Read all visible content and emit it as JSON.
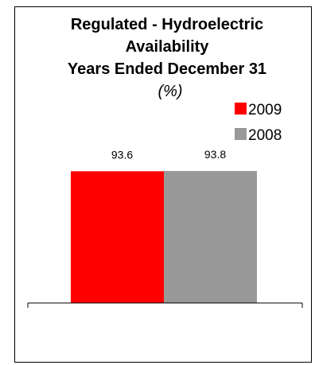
{
  "chart_data": {
    "type": "bar",
    "title_lines": [
      "Regulated - Hydroelectric",
      "Availability",
      "Years Ended December 31"
    ],
    "subtitle": "(%)",
    "categories": [
      ""
    ],
    "series": [
      {
        "name": "2009",
        "values": [
          93.6
        ],
        "color": "#ff0000"
      },
      {
        "name": "2008",
        "values": [
          93.8
        ],
        "color": "#999999"
      }
    ],
    "legend_position": "top-right",
    "grid": false,
    "xlabel": "",
    "ylabel": ""
  }
}
